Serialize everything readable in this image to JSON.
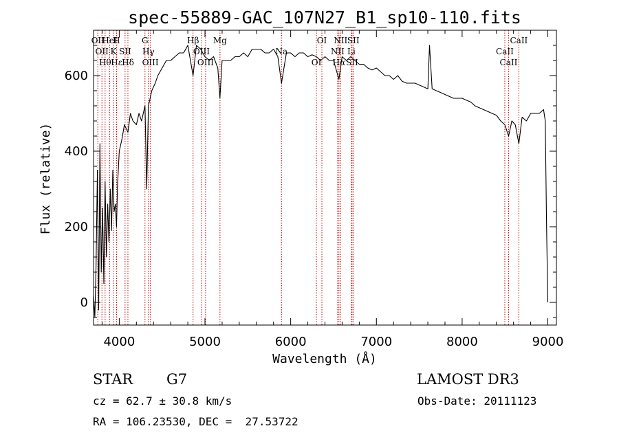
{
  "chart_data": {
    "type": "line",
    "title": "spec-55889-GAC_107N27_B1_sp10-110.fits",
    "xlabel": "Wavelength (Å)",
    "ylabel": "Flux (relative)",
    "xlim": [
      3700,
      9100
    ],
    "ylim": [
      -60,
      720
    ],
    "x_ticks": [
      4000,
      5000,
      6000,
      7000,
      8000,
      9000
    ],
    "y_ticks": [
      0,
      200,
      400,
      600
    ],
    "grid": false,
    "series": [
      {
        "x": [
          3700,
          3715,
          3730,
          3745,
          3760,
          3775,
          3790,
          3805,
          3820,
          3835,
          3850,
          3865,
          3880,
          3895,
          3910,
          3925,
          3940,
          3955,
          3968,
          3980,
          4000,
          4030,
          4060,
          4101,
          4130,
          4160,
          4200,
          4230,
          4260,
          4300,
          4320,
          4340,
          4360,
          4380,
          4420,
          4450,
          4500,
          4550,
          4600,
          4650,
          4700,
          4750,
          4800,
          4861,
          4900,
          4950,
          5000,
          5050,
          5100,
          5150,
          5175,
          5200,
          5250,
          5300,
          5350,
          5400,
          5450,
          5500,
          5550,
          5600,
          5650,
          5700,
          5750,
          5800,
          5850,
          5893,
          5950,
          6000,
          6050,
          6100,
          6150,
          6200,
          6250,
          6300,
          6350,
          6400,
          6450,
          6500,
          6563,
          6600,
          6650,
          6700,
          6750,
          6800,
          6850,
          6900,
          6950,
          7000,
          7050,
          7100,
          7150,
          7200,
          7250,
          7300,
          7350,
          7400,
          7450,
          7500,
          7550,
          7600,
          7620,
          7650,
          7700,
          7750,
          7800,
          7850,
          7900,
          7950,
          8000,
          8050,
          8100,
          8150,
          8200,
          8250,
          8300,
          8350,
          8400,
          8450,
          8498,
          8542,
          8580,
          8620,
          8662,
          8700,
          8750,
          8800,
          8850,
          8900,
          8950,
          8970,
          8985,
          9000
        ],
        "y": [
          20,
          -40,
          100,
          350,
          -20,
          420,
          80,
          250,
          50,
          320,
          120,
          260,
          160,
          300,
          190,
          350,
          240,
          260,
          200,
          310,
          400,
          430,
          470,
          450,
          500,
          480,
          470,
          500,
          480,
          520,
          300,
          520,
          540,
          560,
          580,
          600,
          620,
          640,
          640,
          650,
          660,
          660,
          680,
          600,
          680,
          670,
          650,
          640,
          650,
          620,
          540,
          640,
          640,
          640,
          650,
          650,
          660,
          650,
          670,
          670,
          670,
          660,
          660,
          670,
          650,
          580,
          660,
          660,
          650,
          660,
          660,
          650,
          655,
          650,
          640,
          650,
          640,
          640,
          590,
          650,
          640,
          650,
          640,
          630,
          630,
          620,
          615,
          620,
          610,
          600,
          600,
          590,
          600,
          585,
          580,
          580,
          580,
          575,
          570,
          565,
          680,
          565,
          560,
          555,
          550,
          545,
          540,
          540,
          540,
          535,
          530,
          520,
          515,
          510,
          505,
          500,
          495,
          480,
          470,
          440,
          480,
          470,
          420,
          490,
          480,
          500,
          500,
          500,
          510,
          480,
          200,
          0
        ]
      }
    ],
    "lines": [
      {
        "wave": 3750,
        "label": "OII"
      },
      {
        "wave": 3798,
        "label": "OII"
      },
      {
        "wave": 3835,
        "label": "Hθ"
      },
      {
        "wave": 3889,
        "label": "HeI"
      },
      {
        "wave": 3933,
        "label": "K"
      },
      {
        "wave": 3970,
        "label": "Hε"
      },
      {
        "wave": 3968,
        "label": "H"
      },
      {
        "wave": 4068,
        "label": "SII"
      },
      {
        "wave": 4101,
        "label": "Hδ"
      },
      {
        "wave": 4300,
        "label": "G"
      },
      {
        "wave": 4340,
        "label": "Hγ"
      },
      {
        "wave": 4363,
        "label": "OIII"
      },
      {
        "wave": 4861,
        "label": "Hβ"
      },
      {
        "wave": 4959,
        "label": "OIII"
      },
      {
        "wave": 5007,
        "label": "OIII"
      },
      {
        "wave": 5175,
        "label": "Mg"
      },
      {
        "wave": 5893,
        "label": "Na"
      },
      {
        "wave": 6300,
        "label": "OI"
      },
      {
        "wave": 6364,
        "label": "OI"
      },
      {
        "wave": 6548,
        "label": "NII"
      },
      {
        "wave": 6563,
        "label": "Hα"
      },
      {
        "wave": 6583,
        "label": "NII"
      },
      {
        "wave": 6708,
        "label": "Li"
      },
      {
        "wave": 6716,
        "label": "SII"
      },
      {
        "wave": 6731,
        "label": "SII"
      },
      {
        "wave": 8498,
        "label": "CaII"
      },
      {
        "wave": 8542,
        "label": "CaII"
      },
      {
        "wave": 8662,
        "label": "CaII"
      }
    ]
  },
  "info": {
    "class": "STAR",
    "subclass": "G7",
    "cz": "cz = 62.7 ± 30.8 km/s",
    "radec": "RA = 106.23530, DEC =  27.53722",
    "survey": "LAMOST DR3",
    "obsdate": "Obs-Date: 20111123"
  }
}
